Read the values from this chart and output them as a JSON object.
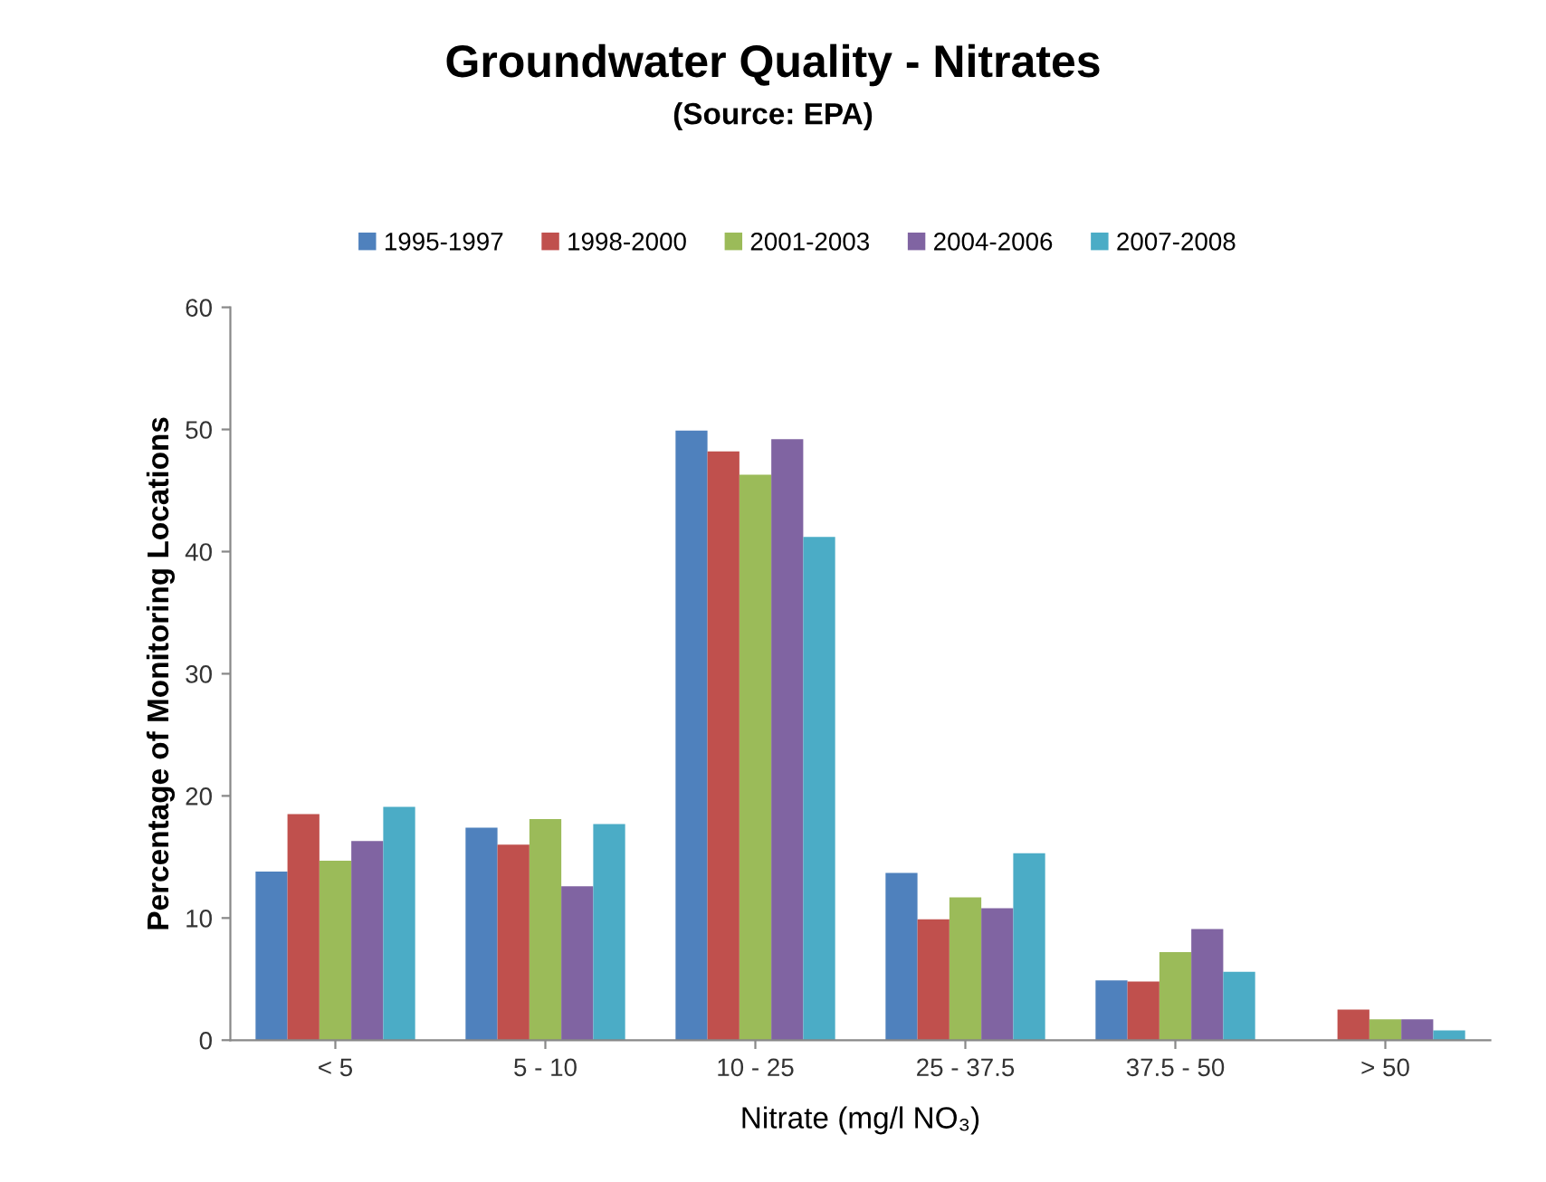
{
  "chart_data": {
    "type": "bar",
    "title": "Groundwater Quality - Nitrates",
    "subtitle": "(Source: EPA)",
    "xlabel": "Nitrate (mg/l NO₃)",
    "ylabel": "Percentage of Monitoring Locations",
    "categories": [
      "< 5",
      "5 - 10",
      "10 - 25",
      "25 - 37.5",
      "37.5 - 50",
      "> 50"
    ],
    "series": [
      {
        "name": "1995-1997",
        "color": "#4f81bd",
        "values": [
          13.8,
          17.4,
          49.9,
          13.7,
          4.9,
          null
        ]
      },
      {
        "name": "1998-2000",
        "color": "#c0504d",
        "values": [
          18.5,
          16.0,
          48.2,
          9.9,
          4.8,
          2.5
        ]
      },
      {
        "name": "2001-2003",
        "color": "#9bbb59",
        "values": [
          14.7,
          18.1,
          46.3,
          11.7,
          7.2,
          1.7
        ]
      },
      {
        "name": "2004-2006",
        "color": "#8064a2",
        "values": [
          16.3,
          12.6,
          49.2,
          10.8,
          9.1,
          1.7
        ]
      },
      {
        "name": "2007-2008",
        "color": "#4bacc6",
        "values": [
          19.1,
          17.7,
          41.2,
          15.3,
          5.6,
          0.8
        ]
      }
    ],
    "ylim": [
      0,
      60
    ],
    "yticks": [
      0,
      10,
      20,
      30,
      40,
      50,
      60
    ],
    "grid": false,
    "legend": "top"
  }
}
